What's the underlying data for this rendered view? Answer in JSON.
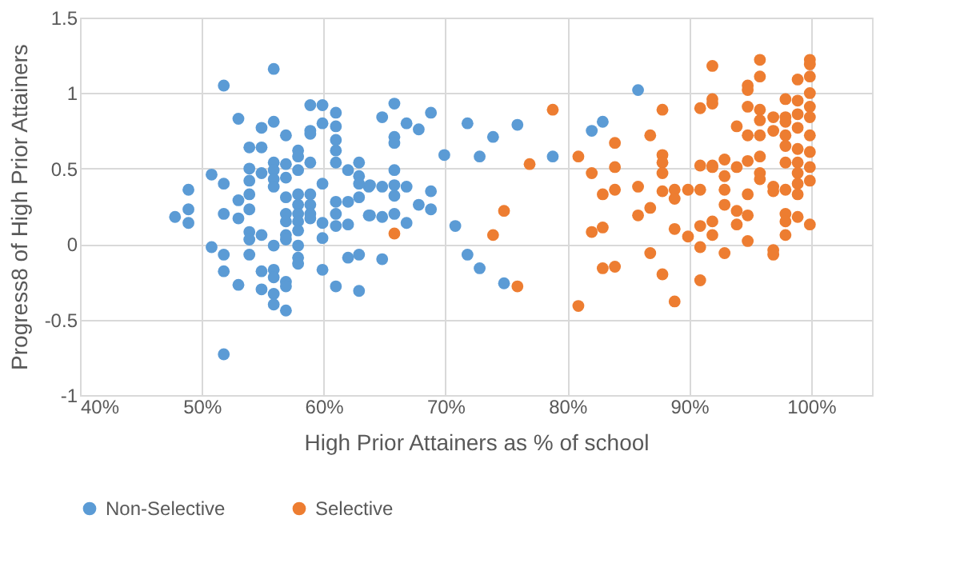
{
  "chart_data": {
    "type": "scatter",
    "xlabel": "High Prior Attainers as % of school",
    "ylabel": "Progress8 of High Prior Attainers",
    "xlim": [
      40,
      105
    ],
    "ylim": [
      -1,
      1.5
    ],
    "xticks": [
      {
        "value": 40,
        "label": "40%"
      },
      {
        "value": 50,
        "label": "50%"
      },
      {
        "value": 60,
        "label": "60%"
      },
      {
        "value": 70,
        "label": "70%"
      },
      {
        "value": 80,
        "label": "80%"
      },
      {
        "value": 90,
        "label": "90%"
      },
      {
        "value": 100,
        "label": "100%"
      }
    ],
    "yticks": [
      -1,
      -0.5,
      0,
      0.5,
      1,
      1.5
    ],
    "grid": true,
    "legend": "bottom",
    "marker": "circle",
    "series": [
      {
        "name": "Non-Selective",
        "color": "#5b9bd5",
        "x": [
          55.9,
          51.8,
          53.0,
          55.9,
          54.9,
          56.9,
          58.9,
          59.9,
          61.0,
          59.9,
          61.0,
          58.9,
          58.9,
          61.0,
          61.0,
          61.0,
          53.9,
          54.9,
          57.9,
          57.9,
          58.9,
          55.9,
          56.9,
          55.9,
          53.9,
          54.9,
          57.9,
          56.9,
          55.9,
          53.9,
          55.9,
          53.9,
          50.8,
          51.8,
          48.9,
          48.9,
          47.8,
          48.9,
          51.8,
          53.0,
          53.0,
          53.9,
          56.9,
          57.9,
          58.9,
          57.9,
          58.9,
          56.9,
          57.9,
          58.9,
          56.9,
          57.9,
          58.9,
          59.9,
          62.0,
          62.9,
          62.9,
          62.9,
          62.0,
          61.0,
          61.0,
          62.9,
          63.7,
          63.7,
          59.9,
          61.0,
          62.0,
          53.9,
          54.9,
          53.9,
          56.9,
          57.9,
          56.9,
          59.9,
          50.8,
          55.9,
          57.9,
          51.8,
          53.9,
          57.9,
          57.9,
          62.0,
          62.9,
          51.8,
          54.9,
          55.9,
          59.9,
          53.0,
          54.9,
          55.9,
          55.9,
          56.9,
          56.9,
          55.9,
          56.9,
          61.0,
          62.9,
          51.8,
          65.8,
          64.8,
          66.8,
          67.8,
          68.8,
          65.8,
          65.8,
          71.8,
          73.9,
          75.9,
          69.9,
          72.8,
          78.8,
          82.0,
          82.9,
          65.8,
          63.8,
          64.8,
          65.8,
          66.8,
          65.8,
          68.8,
          67.8,
          68.8,
          65.8,
          63.8,
          64.8,
          66.8,
          70.8,
          64.8,
          71.8,
          72.8,
          74.8,
          85.8
        ],
        "values": [
          1.16,
          1.05,
          0.83,
          0.81,
          0.77,
          0.72,
          0.92,
          0.92,
          0.87,
          0.8,
          0.78,
          0.73,
          0.75,
          0.69,
          0.62,
          0.54,
          0.64,
          0.64,
          0.62,
          0.58,
          0.54,
          0.54,
          0.53,
          0.49,
          0.5,
          0.47,
          0.49,
          0.44,
          0.43,
          0.42,
          0.38,
          0.33,
          0.46,
          0.4,
          0.36,
          0.23,
          0.18,
          0.14,
          0.2,
          0.29,
          0.17,
          0.23,
          0.31,
          0.33,
          0.33,
          0.26,
          0.26,
          0.2,
          0.2,
          0.2,
          0.15,
          0.15,
          0.17,
          0.4,
          0.49,
          0.54,
          0.45,
          0.4,
          0.28,
          0.28,
          0.2,
          0.31,
          0.38,
          0.19,
          0.14,
          0.12,
          0.13,
          0.08,
          0.06,
          0.03,
          0.06,
          0.09,
          0.03,
          0.04,
          -0.02,
          -0.01,
          -0.01,
          -0.07,
          -0.07,
          -0.09,
          -0.13,
          -0.09,
          -0.07,
          -0.18,
          -0.18,
          -0.17,
          -0.17,
          -0.27,
          -0.3,
          -0.22,
          -0.33,
          -0.25,
          -0.28,
          -0.4,
          -0.44,
          -0.28,
          -0.31,
          -0.73,
          0.93,
          0.84,
          0.8,
          0.76,
          0.87,
          0.71,
          0.67,
          0.8,
          0.71,
          0.79,
          0.59,
          0.58,
          0.58,
          0.75,
          0.81,
          0.49,
          0.39,
          0.38,
          0.39,
          0.38,
          0.32,
          0.35,
          0.26,
          0.23,
          0.2,
          0.19,
          0.18,
          0.14,
          0.12,
          -0.1,
          -0.07,
          -0.16,
          -0.26,
          1.02
        ]
      },
      {
        "name": "Selective",
        "color": "#ed7d31",
        "x": [
          65.8,
          74.8,
          73.9,
          75.9,
          76.9,
          78.8,
          80.9,
          80.9,
          82.0,
          82.0,
          82.9,
          82.9,
          83.9,
          83.9,
          83.9,
          82.9,
          83.9,
          85.8,
          85.8,
          86.8,
          86.8,
          86.8,
          87.8,
          87.8,
          87.8,
          87.8,
          87.8,
          87.8,
          88.8,
          88.8,
          88.8,
          88.8,
          89.9,
          89.9,
          90.9,
          90.9,
          90.9,
          90.9,
          90.9,
          90.9,
          91.9,
          91.9,
          91.9,
          91.9,
          91.9,
          91.9,
          91.9,
          92.9,
          92.9,
          92.9,
          92.9,
          92.9,
          93.9,
          93.9,
          93.9,
          93.9,
          94.8,
          94.8,
          94.8,
          94.8,
          94.8,
          94.8,
          94.8,
          94.8,
          95.8,
          95.8,
          95.8,
          95.8,
          95.8,
          95.8,
          95.8,
          95.8,
          96.9,
          96.9,
          96.9,
          96.9,
          96.9,
          96.9,
          97.9,
          97.9,
          97.9,
          97.9,
          97.9,
          97.9,
          97.9,
          97.9,
          97.9,
          97.9,
          98.9,
          98.9,
          98.9,
          98.9,
          98.9,
          98.9,
          98.9,
          98.9,
          98.9,
          98.9,
          99.9,
          99.9,
          99.9,
          99.9,
          99.9,
          99.9,
          99.9,
          99.9,
          99.9,
          99.9,
          99.9
        ],
        "values": [
          0.07,
          0.22,
          0.06,
          -0.28,
          0.53,
          0.89,
          0.58,
          -0.41,
          0.47,
          0.08,
          0.11,
          0.33,
          0.67,
          0.51,
          0.36,
          -0.16,
          -0.15,
          0.38,
          0.19,
          0.24,
          0.72,
          -0.06,
          0.89,
          0.59,
          0.54,
          0.47,
          0.35,
          -0.2,
          0.36,
          0.3,
          0.1,
          -0.38,
          0.05,
          0.36,
          0.36,
          0.52,
          0.9,
          0.12,
          -0.02,
          -0.24,
          1.18,
          0.96,
          0.93,
          0.52,
          0.51,
          0.15,
          0.06,
          0.56,
          0.45,
          0.36,
          0.26,
          -0.06,
          0.78,
          0.51,
          0.22,
          0.13,
          1.05,
          1.02,
          0.91,
          0.72,
          0.55,
          0.33,
          0.19,
          0.02,
          1.22,
          1.11,
          0.89,
          0.82,
          0.72,
          0.58,
          0.47,
          0.43,
          0.84,
          0.75,
          0.38,
          0.35,
          -0.04,
          -0.07,
          0.96,
          0.84,
          0.81,
          0.72,
          0.65,
          0.54,
          0.36,
          0.2,
          0.15,
          0.06,
          1.09,
          0.95,
          0.86,
          0.77,
          0.63,
          0.54,
          0.47,
          0.4,
          0.33,
          0.18,
          1.22,
          1.19,
          1.11,
          1.0,
          0.91,
          0.84,
          0.72,
          0.61,
          0.51,
          0.42,
          0.13
        ]
      }
    ]
  }
}
